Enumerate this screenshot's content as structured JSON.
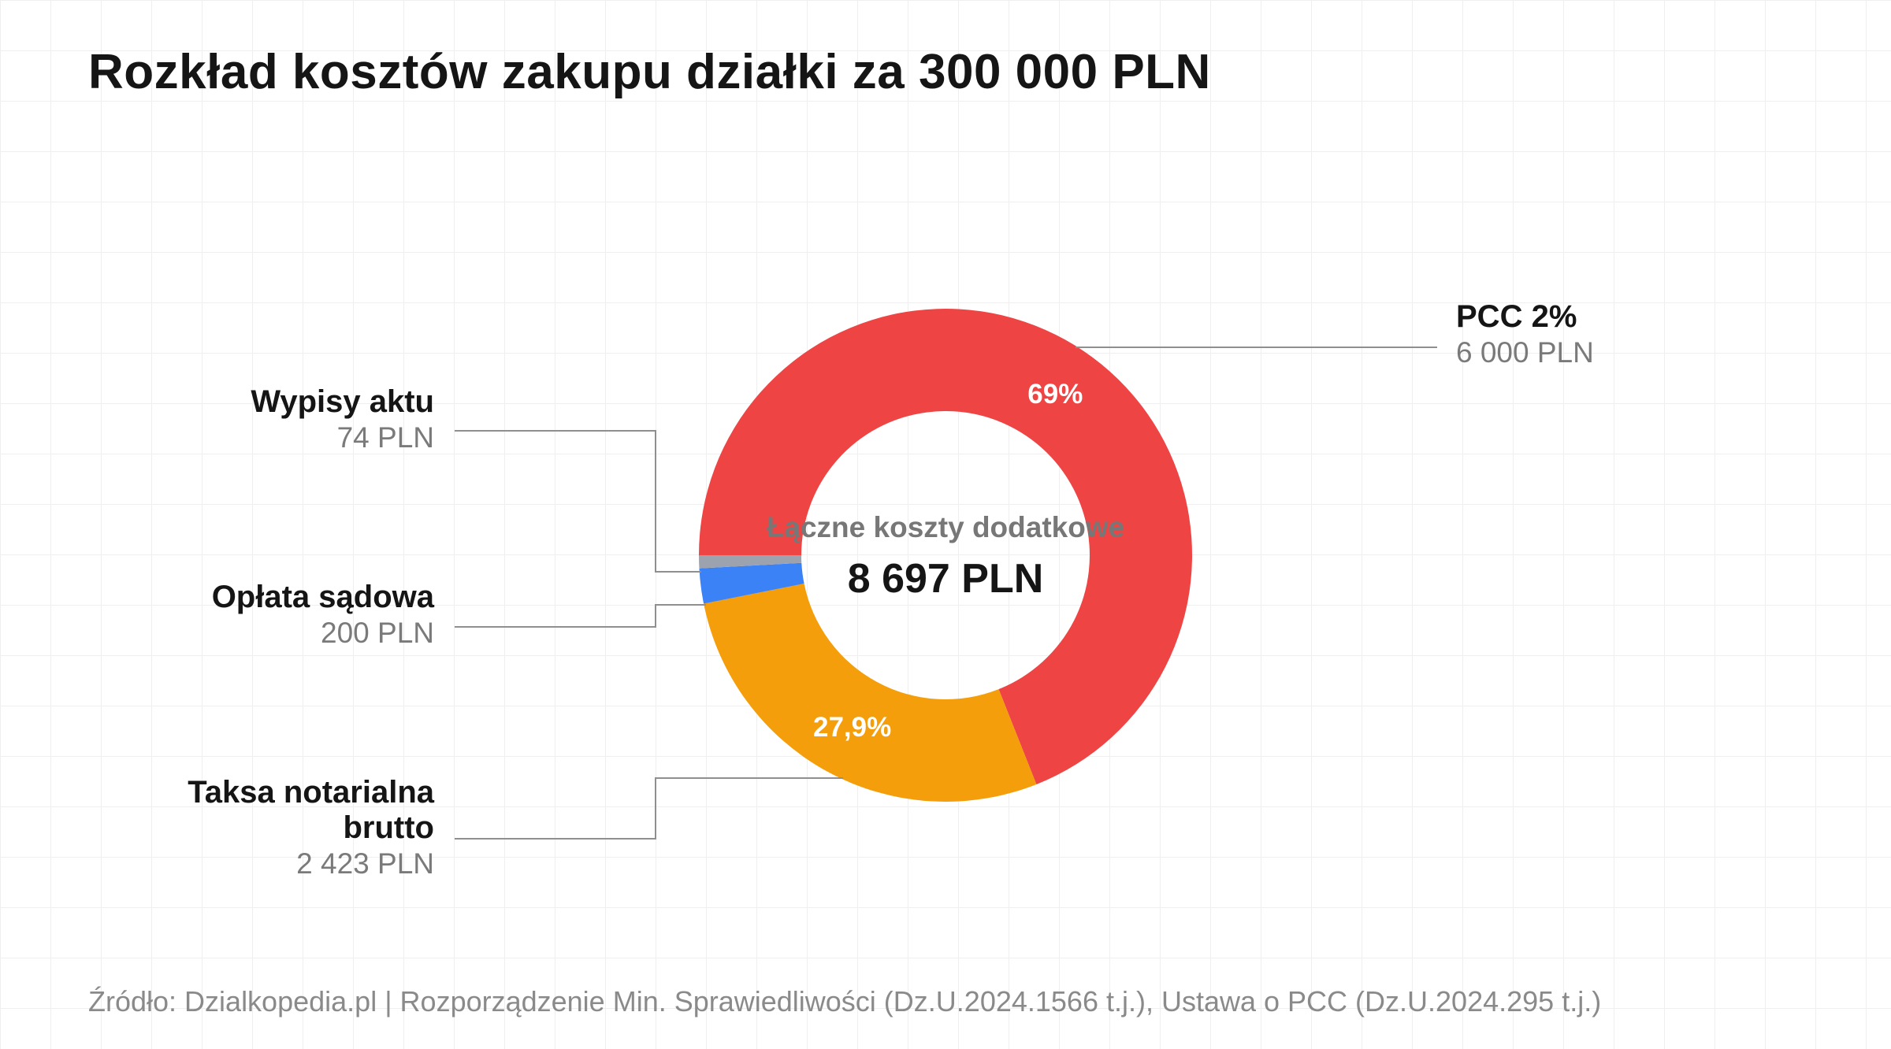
{
  "title": "Rozkład kosztów zakupu działki za 300 000 PLN",
  "source": "Źródło: Dzialkopedia.pl | Rozporządzenie Min. Sprawiedliwości (Dz.U.2024.1566 t.j.), Ustawa o PCC (Dz.U.2024.295 t.j.)",
  "chart_data": {
    "type": "pie",
    "variant": "donut",
    "title": "Rozkład kosztów zakupu działki za 300 000 PLN",
    "center_label": "Łączne koszty dodatkowe",
    "center_value": "8 697 PLN",
    "unit": "PLN",
    "slices": [
      {
        "label": "PCC 2%",
        "value": 6000,
        "value_text": "6 000 PLN",
        "pct_text": "69%",
        "color": "#ef4444"
      },
      {
        "label": "Taksa notarialna brutto",
        "label_lines": [
          "Taksa notarialna",
          "brutto"
        ],
        "value": 2423,
        "value_text": "2 423 PLN",
        "pct_text": "27,9%",
        "color": "#f59e0b"
      },
      {
        "label": "Opłata sądowa",
        "value": 200,
        "value_text": "200 PLN",
        "color": "#3b82f6"
      },
      {
        "label": "Wypisy aktu",
        "value": 74,
        "value_text": "74 PLN",
        "color": "#9ca3af"
      }
    ]
  }
}
